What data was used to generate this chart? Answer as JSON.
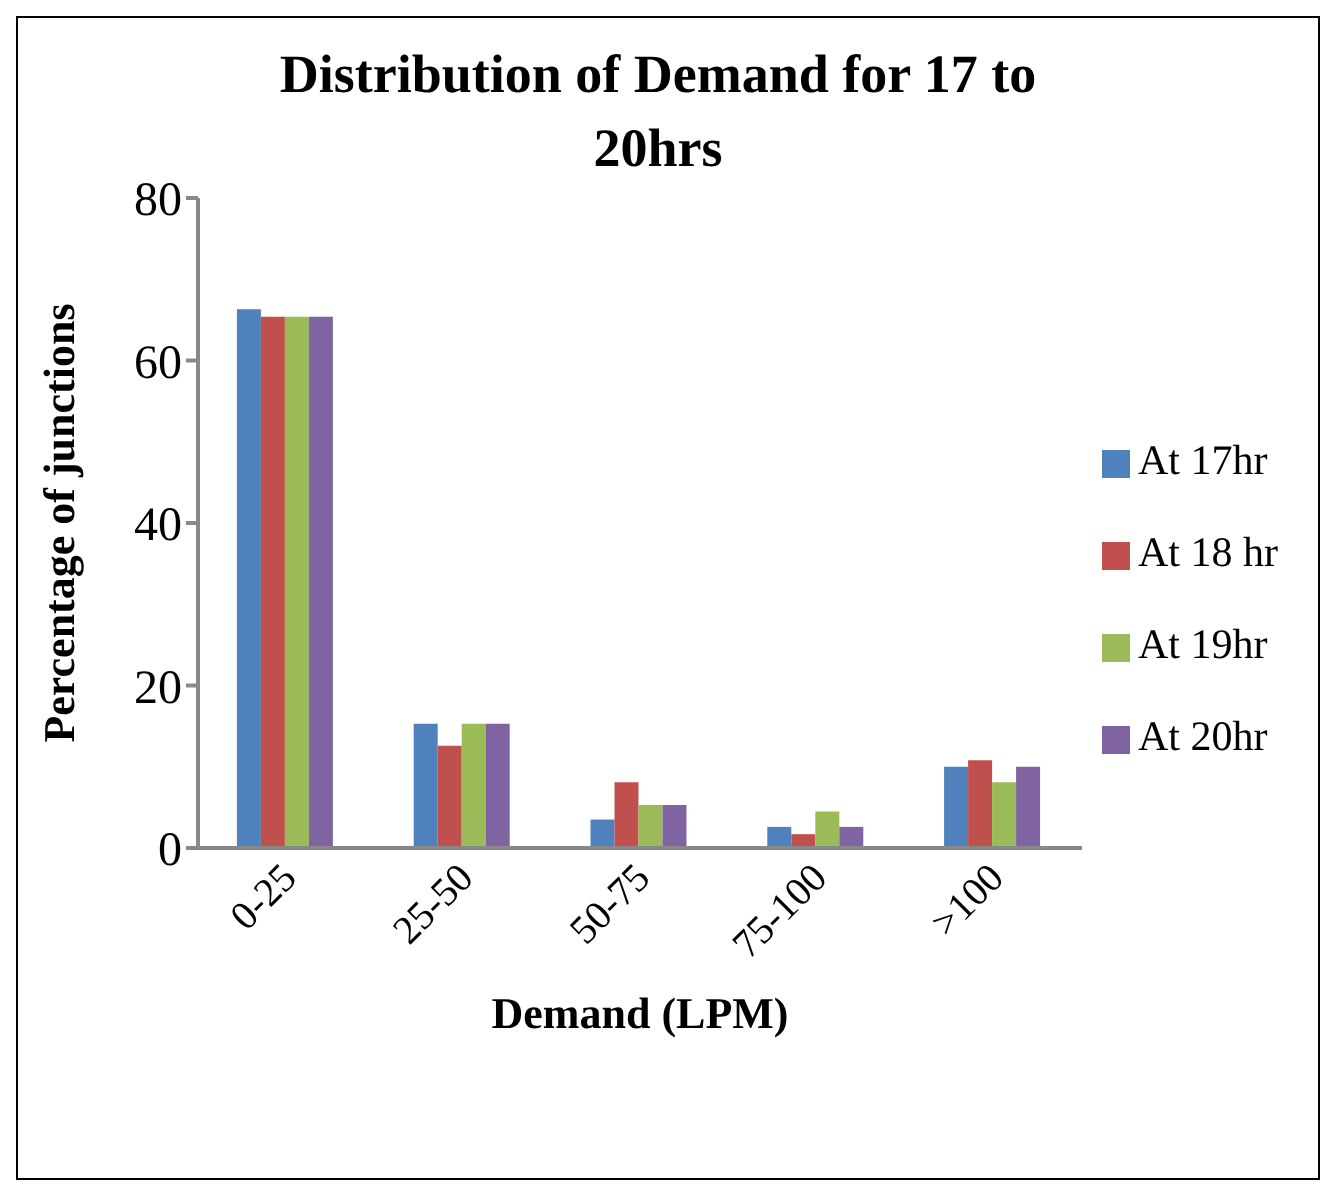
{
  "chart_data": {
    "type": "bar",
    "title": "Distribution of Demand for 17 to 20hrs",
    "xlabel": "Demand (LPM)",
    "ylabel": "Percentage of junctions",
    "categories": [
      "0-25",
      "25-50",
      "50-75",
      "75-100",
      ">100"
    ],
    "series": [
      {
        "name": "At 17hr",
        "color": "#4f81bd",
        "values": [
          66.3,
          15.3,
          3.5,
          2.6,
          10.0
        ]
      },
      {
        "name": "At 18 hr",
        "color": "#c0504d",
        "values": [
          65.4,
          12.6,
          8.1,
          1.7,
          10.8
        ]
      },
      {
        "name": "At 19hr",
        "color": "#9bbb59",
        "values": [
          65.4,
          15.3,
          5.3,
          4.5,
          8.1
        ]
      },
      {
        "name": "At 20hr",
        "color": "#8064a2",
        "values": [
          65.4,
          15.3,
          5.3,
          2.6,
          10.0
        ]
      }
    ],
    "ylim": [
      0,
      80
    ],
    "yticks": [
      0,
      20,
      40,
      60,
      80
    ],
    "grid": false,
    "legend": "right"
  }
}
